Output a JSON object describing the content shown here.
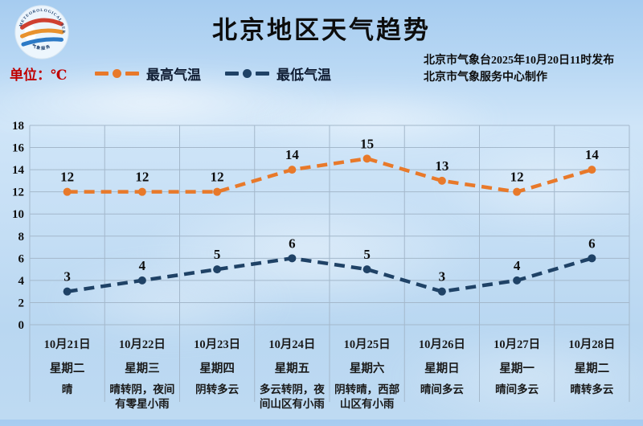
{
  "header": {
    "title": "北京地区天气趋势",
    "unit_label": "单位：℃",
    "issued_line1": "北京市气象台2025年10月20日11时发布",
    "issued_line2": "北京市气象服务中心制作"
  },
  "icons": {
    "logo": "beijing-meteorological-service-emblem",
    "logo_rim_text": "METEOROLOGICAL SERVICE"
  },
  "legend": {
    "items": [
      {
        "label": "最高气温",
        "color": "#E8792A"
      },
      {
        "label": "最低气温",
        "color": "#1F4266"
      }
    ]
  },
  "chart_data": {
    "type": "line",
    "title": "北京地区天气趋势",
    "unit": "℃",
    "categories": [
      "10月21日",
      "10月22日",
      "10月23日",
      "10月24日",
      "10月25日",
      "10月26日",
      "10月27日",
      "10月28日"
    ],
    "weekdays": [
      "星期二",
      "星期三",
      "星期四",
      "星期五",
      "星期六",
      "星期日",
      "星期一",
      "星期二"
    ],
    "weather": [
      "晴",
      "晴转阴，夜间有零星小雨",
      "阴转多云",
      "多云转阴，夜间山区有小雨",
      "阴转晴，西部山区有小雨",
      "晴间多云",
      "晴间多云",
      "晴转多云"
    ],
    "series": [
      {
        "name": "最高气温",
        "color": "#E8792A",
        "values": [
          12,
          12,
          12,
          14,
          15,
          13,
          12,
          14
        ]
      },
      {
        "name": "最低气温",
        "color": "#1F4266",
        "values": [
          3,
          4,
          5,
          6,
          5,
          3,
          4,
          6
        ]
      }
    ],
    "ylim": [
      0,
      18
    ],
    "ytick_step": 2,
    "grid": true,
    "line_style": "dashed",
    "legend_position": "top-left"
  },
  "colors": {
    "unit_label": "#C00000",
    "grid": "#A4B8CB",
    "axis_text": "#111111",
    "value_label": "#0d0d0d"
  }
}
